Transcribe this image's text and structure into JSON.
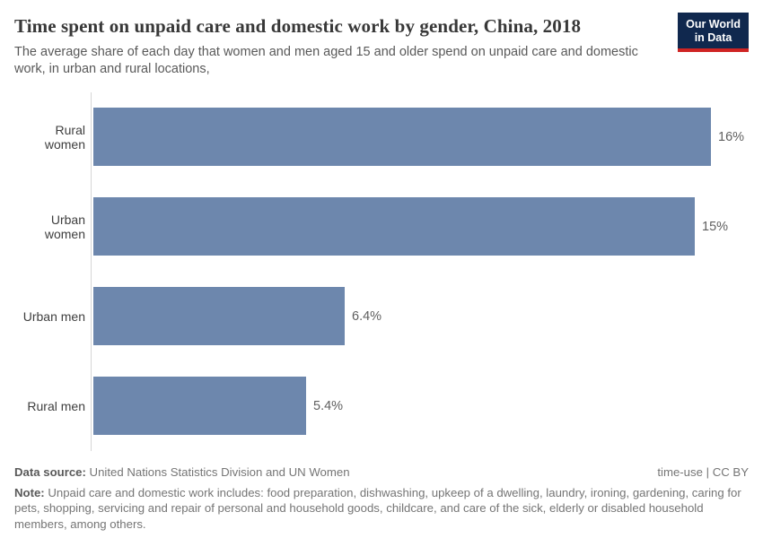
{
  "header": {
    "title": "Time spent on unpaid care and domestic work by gender, China, 2018",
    "subtitle": "The average share of each day that women and men aged 15 and older spend on unpaid care and domestic work, in urban and rural locations,",
    "logo": {
      "line1": "Our World",
      "line2": "in Data",
      "bg_color": "#10284e",
      "accent_color": "#cf2423",
      "text_color": "#ffffff"
    }
  },
  "chart_data": {
    "type": "bar",
    "orientation": "horizontal",
    "title": "Time spent on unpaid care and domestic work by gender, China, 2018",
    "categories": [
      "Rural women",
      "Urban women",
      "Urban men",
      "Rural men"
    ],
    "values": [
      15.7,
      15.3,
      6.4,
      5.4
    ],
    "value_labels": [
      "16%",
      "15%",
      "6.4%",
      "5.4%"
    ],
    "xlabel": "",
    "ylabel": "",
    "xlim": [
      0,
      15.7
    ],
    "grid": false,
    "legend": "none",
    "bar_color": "#6d87ad",
    "axis_color": "#d6d6d6"
  },
  "footer": {
    "source_label": "Data source:",
    "source_text": " United Nations Statistics Division and UN Women",
    "license": "time-use | CC BY",
    "note_label": "Note:",
    "note_text": " Unpaid care and domestic work includes: food preparation, dishwashing, upkeep of a dwelling, laundry, ironing, gardening, caring for pets, shopping, servicing and repair of personal and household goods, childcare, and care of the sick, elderly or disabled household members, among others."
  }
}
